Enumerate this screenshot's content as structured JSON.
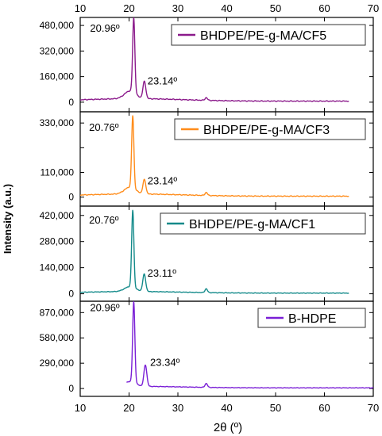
{
  "figure": {
    "xlabel": "2θ (º)",
    "ylabel": "Intensity (a.u.)",
    "xticks": [
      "10",
      "20",
      "30",
      "40",
      "50",
      "60",
      "70"
    ]
  },
  "chart_data": [
    {
      "type": "line",
      "name": "BHDPE/PE-g-MA/CF5",
      "color": "#8b1a8b",
      "xlim": [
        10,
        70
      ],
      "ylim": [
        -60000,
        530000
      ],
      "yticks": [
        0,
        160000,
        320000,
        480000
      ],
      "ytick_labels": [
        "0",
        "160,000",
        "320,000",
        "480,000"
      ],
      "x_range": [
        10,
        65
      ],
      "baseline": 22000,
      "peaks": [
        {
          "x": 20.96,
          "y": 480000,
          "label": "20.96º"
        },
        {
          "x": 23.14,
          "y": 120000,
          "label": "23.14º"
        },
        {
          "x": 35.8,
          "y": 30000
        }
      ],
      "legend": "BHDPE/PE-g-MA/CF5",
      "legend_position": "top-right"
    },
    {
      "type": "line",
      "name": "BHDPE/PE-g-MA/CF3",
      "color": "#ff8c1a",
      "xlim": [
        10,
        70
      ],
      "ylim": [
        -40000,
        380000
      ],
      "yticks": [
        0,
        110000,
        220000,
        330000
      ],
      "ytick_labels": [
        "0",
        "110,000",
        "",
        "330,000"
      ],
      "x_range": [
        10,
        65
      ],
      "baseline": 14000,
      "peaks": [
        {
          "x": 20.76,
          "y": 330000,
          "label": "20.76º"
        },
        {
          "x": 23.14,
          "y": 72000,
          "label": "23.14º"
        },
        {
          "x": 35.8,
          "y": 22000
        }
      ],
      "legend": "BHDPE/PE-g-MA/CF3",
      "legend_position": "top-right"
    },
    {
      "type": "line",
      "name": "BHDPE/PE-g-MA/CF1",
      "color": "#138a8a",
      "xlim": [
        10,
        70
      ],
      "ylim": [
        -40000,
        470000
      ],
      "yticks": [
        0,
        140000,
        280000,
        420000
      ],
      "ytick_labels": [
        "0",
        "140,000",
        "280,000",
        "420,000"
      ],
      "x_range": [
        10,
        65
      ],
      "baseline": 12000,
      "peaks": [
        {
          "x": 20.76,
          "y": 420000,
          "label": "20.76º"
        },
        {
          "x": 23.11,
          "y": 100000,
          "label": "23.11º"
        },
        {
          "x": 35.8,
          "y": 28000
        }
      ],
      "legend": "BHDPE/PE-g-MA/CF1",
      "legend_position": "top-right"
    },
    {
      "type": "line",
      "name": "B-HDPE",
      "color": "#7a1fd6",
      "xlim": [
        10,
        70
      ],
      "ylim": [
        -90000,
        1000000
      ],
      "yticks": [
        0,
        290000,
        580000,
        870000
      ],
      "ytick_labels": [
        "0",
        "290,000",
        "580,000",
        "870,000"
      ],
      "x_range": [
        19.5,
        70
      ],
      "baseline": 25000,
      "peaks": [
        {
          "x": 20.96,
          "y": 940000,
          "label": "20.96º"
        },
        {
          "x": 23.34,
          "y": 260000,
          "label": "23.34º"
        },
        {
          "x": 35.8,
          "y": 60000
        }
      ],
      "legend": "B-HDPE",
      "legend_position": "top-right"
    }
  ]
}
